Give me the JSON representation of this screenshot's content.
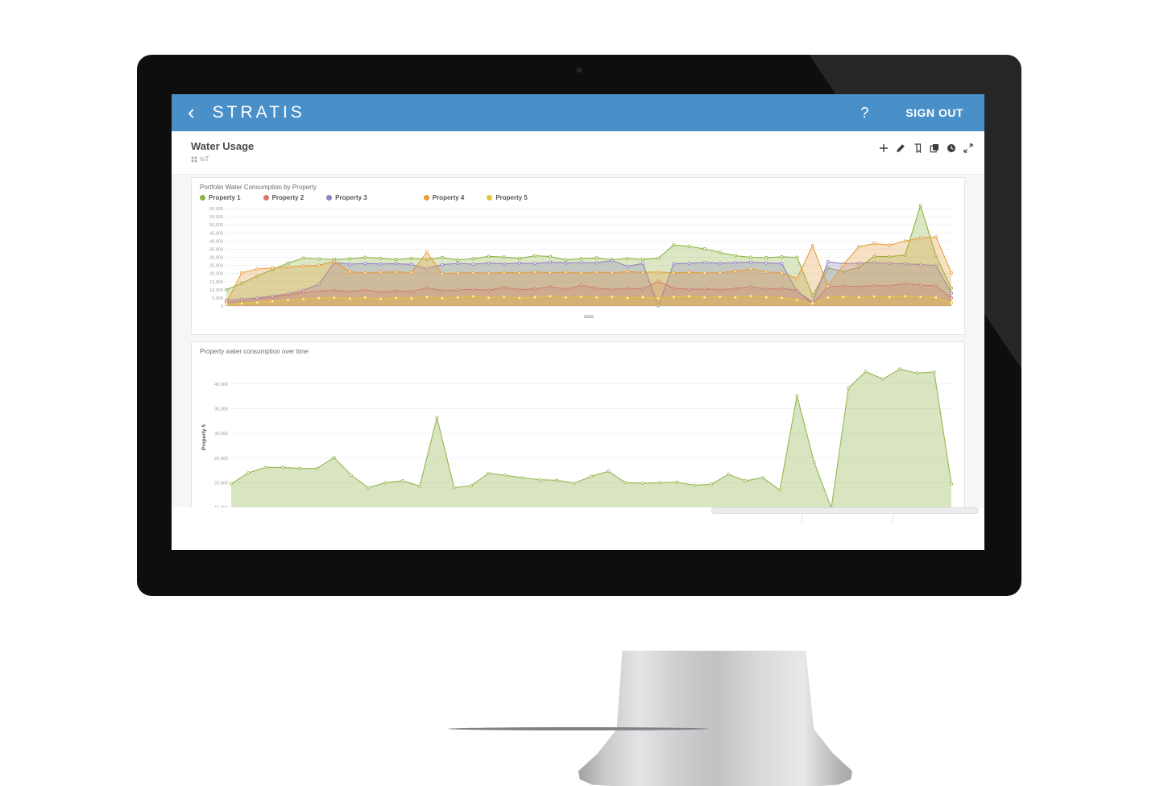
{
  "header": {
    "back_label": "‹",
    "brand": "STRATIS",
    "help_label": "?",
    "sign_out_label": "SIGN OUT"
  },
  "page": {
    "title": "Water Usage",
    "subtitle": "IoT"
  },
  "toolbar": {
    "icons": [
      "add-icon",
      "edit-pencil-icon",
      "bookmark-page-icon",
      "copy-icon",
      "clock-icon",
      "expand-icon"
    ]
  },
  "colors": {
    "header_blue": "#4a90c8",
    "property1_green": "#8ab33f",
    "property2_red": "#d8736f",
    "property3_purple": "#9181c4",
    "property4_orange": "#e69d3d",
    "property5_yellow": "#e2c53d"
  },
  "chart_data": [
    {
      "type": "area",
      "title": "Portfolio Water Consumption by Property",
      "xlabel": "date",
      "ylabel": "",
      "ylim": [
        0,
        62500
      ],
      "yticks": [
        0,
        5000,
        10000,
        15000,
        20000,
        25000,
        30000,
        35000,
        40000,
        45000,
        50000,
        55000,
        60000
      ],
      "grid": true,
      "legend_position": "top",
      "series": [
        {
          "name": "Property 1",
          "color": "#8ab33f",
          "values": [
            10000,
            14000,
            18500,
            22500,
            26500,
            29500,
            29000,
            28600,
            29100,
            30000,
            29400,
            28600,
            29300,
            28700,
            29800,
            28400,
            29100,
            30600,
            30100,
            29300,
            31000,
            30500,
            28400,
            29100,
            29600,
            28500,
            29200,
            28700,
            29400,
            37600,
            36700,
            35200,
            33000,
            31000,
            30000,
            29800,
            30300,
            30000,
            6500,
            23400,
            21300,
            23700,
            30600,
            30400,
            31400,
            61800,
            31000,
            11000
          ]
        },
        {
          "name": "Property 2",
          "color": "#d8736f",
          "values": [
            2200,
            3000,
            4200,
            5400,
            6800,
            8200,
            9200,
            9600,
            8800,
            9900,
            8500,
            9300,
            8900,
            11200,
            9500,
            9900,
            10300,
            9700,
            11600,
            10000,
            10600,
            11900,
            10400,
            12800,
            11000,
            10300,
            10800,
            10500,
            15200,
            11000,
            10300,
            10500,
            10100,
            10700,
            11900,
            10500,
            10900,
            9500,
            1200,
            11900,
            12300,
            12000,
            12600,
            12300,
            13900,
            12900,
            12400,
            5000
          ]
        },
        {
          "name": "Property 3",
          "color": "#9181c4",
          "values": [
            3500,
            4200,
            5000,
            6200,
            7600,
            9600,
            13500,
            26800,
            25800,
            26200,
            25900,
            26100,
            25600,
            23000,
            25500,
            26300,
            25800,
            26500,
            26000,
            26400,
            26200,
            27000,
            26500,
            26800,
            26600,
            28000,
            24500,
            26200,
            200,
            26000,
            26300,
            26800,
            26400,
            26700,
            27000,
            26500,
            26200,
            9000,
            2500,
            27300,
            26000,
            26400,
            26800,
            26300,
            26000,
            25500,
            25000,
            8000
          ]
        },
        {
          "name": "Property 4",
          "color": "#e69d3d",
          "values": [
            2000,
            20500,
            22800,
            23400,
            24000,
            24600,
            25100,
            27600,
            21000,
            20400,
            20800,
            21000,
            20600,
            33200,
            19800,
            20300,
            20600,
            20200,
            20700,
            20400,
            21000,
            20500,
            20800,
            20300,
            20900,
            20500,
            21200,
            20700,
            21000,
            20400,
            20800,
            20300,
            20600,
            21400,
            22800,
            21000,
            20300,
            17000,
            37200,
            12200,
            25500,
            36500,
            38500,
            37500,
            40000,
            42000,
            42500,
            20500
          ]
        },
        {
          "name": "Property 5",
          "color": "#e2c53d",
          "values": [
            800,
            1600,
            2200,
            2900,
            3600,
            4300,
            4900,
            5100,
            4600,
            5200,
            4400,
            5000,
            4700,
            5600,
            4800,
            5300,
            5800,
            5100,
            5600,
            4900,
            5400,
            6000,
            5200,
            5700,
            5300,
            5600,
            5000,
            5400,
            4800,
            5500,
            5900,
            5300,
            5700,
            5200,
            6100,
            5400,
            5000,
            3800,
            1500,
            5200,
            5600,
            5300,
            5800,
            5500,
            6000,
            5600,
            5200,
            2000
          ]
        }
      ]
    },
    {
      "type": "area",
      "title": "Property water consumption over time",
      "xlabel": "",
      "ylabel": "Property 5",
      "ylim": [
        14200,
        44200
      ],
      "yticks": [
        15000,
        20000,
        25000,
        30000,
        35000,
        40000
      ],
      "grid": true,
      "legend_position": "none",
      "series": [
        {
          "name": "Property 5",
          "color": "#9cba5a",
          "values": [
            19800,
            22000,
            23100,
            23100,
            22900,
            22900,
            25100,
            21500,
            19000,
            20000,
            20400,
            19300,
            33200,
            19000,
            19400,
            21900,
            21500,
            21000,
            20600,
            20500,
            19900,
            21300,
            22300,
            20000,
            19900,
            20000,
            20100,
            19500,
            19700,
            21700,
            20400,
            21000,
            18500,
            37600,
            24100,
            14900,
            39200,
            42500,
            41000,
            43000,
            42200,
            42400,
            19800
          ]
        }
      ]
    }
  ]
}
